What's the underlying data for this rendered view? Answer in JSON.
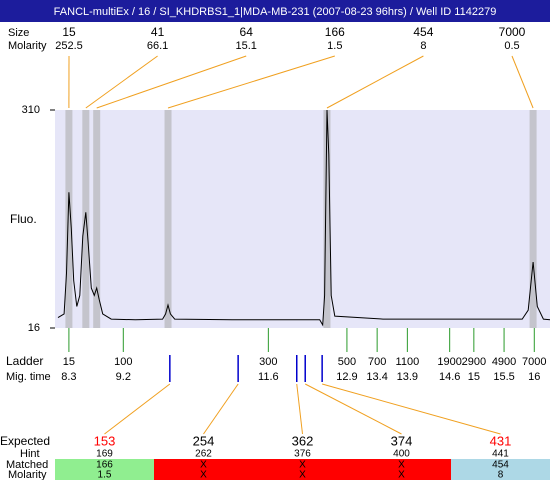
{
  "header": "FANCL-multiEx / 16 / SI_KHDRBS1_1|MDA-MB-231 (2007-08-23 96hrs) / Well ID 1142279",
  "labels": {
    "size": "Size",
    "molarity": "Molarity",
    "fluo": "Fluo.",
    "ladder": "Ladder",
    "mig_time": "Mig. time",
    "expected": "Expected",
    "hint": "Hint",
    "matched": "Matched",
    "matched_molarity": "Molarity"
  },
  "peaks": [
    {
      "size": 15,
      "molarity": 252.5,
      "mig_time": 8.3
    },
    {
      "size": 41,
      "molarity": 66.1,
      "mig_time": 8.58
    },
    {
      "size": 64,
      "molarity": 15.1,
      "mig_time": 8.76
    },
    {
      "size": 166,
      "molarity": 1.5,
      "mig_time": 9.94
    },
    {
      "size": 454,
      "molarity": 8,
      "mig_time": 12.57
    },
    {
      "size": 7000,
      "molarity": 0.5,
      "mig_time": 15.98
    }
  ],
  "chart_data": {
    "type": "line",
    "xlim": [
      8.07,
      16.26
    ],
    "ylim": [
      16,
      310
    ],
    "yticks": [
      16,
      310
    ],
    "x": [
      8.12,
      8.22,
      8.26,
      8.3,
      8.34,
      8.38,
      8.43,
      8.48,
      8.53,
      8.58,
      8.62,
      8.67,
      8.72,
      8.76,
      8.8,
      8.86,
      9.0,
      9.4,
      9.85,
      9.9,
      9.94,
      9.98,
      10.05,
      11,
      12,
      12.45,
      12.5,
      12.53,
      12.57,
      12.6,
      12.64,
      12.7,
      13.5,
      15.8,
      15.9,
      15.98,
      16.05,
      16.15,
      16.26
    ],
    "series": [
      {
        "color": "#000000",
        "values": [
          30,
          35,
          90,
          199,
          150,
          80,
          45,
          60,
          140,
          172,
          130,
          70,
          60,
          70,
          55,
          35,
          28,
          27,
          28,
          35,
          47,
          35,
          28,
          27,
          27,
          27,
          20,
          60,
          310,
          250,
          60,
          32,
          28,
          28,
          40,
          105,
          45,
          28,
          27
        ]
      }
    ]
  },
  "ladder": [
    {
      "size": 15,
      "mig_time": 8.3
    },
    {
      "size": 100,
      "mig_time": 9.2
    },
    {
      "size": 300,
      "mig_time": 11.6
    },
    {
      "size": 500,
      "mig_time": 12.9
    },
    {
      "size": 700,
      "mig_time": 13.4
    },
    {
      "size": 1100,
      "mig_time": 13.9
    },
    {
      "size": 1900,
      "mig_time": 14.6
    },
    {
      "size": 2900,
      "mig_time": 15
    },
    {
      "size": 4900,
      "mig_time": 15.5
    },
    {
      "size": 7000,
      "mig_time": 16
    }
  ],
  "expected": [
    {
      "size": 153,
      "color": "#ff0000",
      "hint": 169,
      "matched": 166,
      "molarity": 1.5,
      "mig_time": 9.97,
      "background": "#90ee90"
    },
    {
      "size": 254,
      "color": "#000000",
      "hint": 262,
      "matched": "X",
      "molarity": "X",
      "mig_time": 11.1,
      "background": "#ff0000"
    },
    {
      "size": 362,
      "color": "#000000",
      "hint": 376,
      "matched": "X",
      "molarity": "X",
      "mig_time": 12.07,
      "background": "#ff0000"
    },
    {
      "size": 374,
      "color": "#000000",
      "hint": 400,
      "matched": "X",
      "molarity": "X",
      "mig_time": 12.21,
      "background": "#ff0000"
    },
    {
      "size": 431,
      "color": "#ff0000",
      "hint": 441,
      "matched": 454,
      "molarity": 8,
      "mig_time": 12.49,
      "background": "#add8e6"
    }
  ]
}
